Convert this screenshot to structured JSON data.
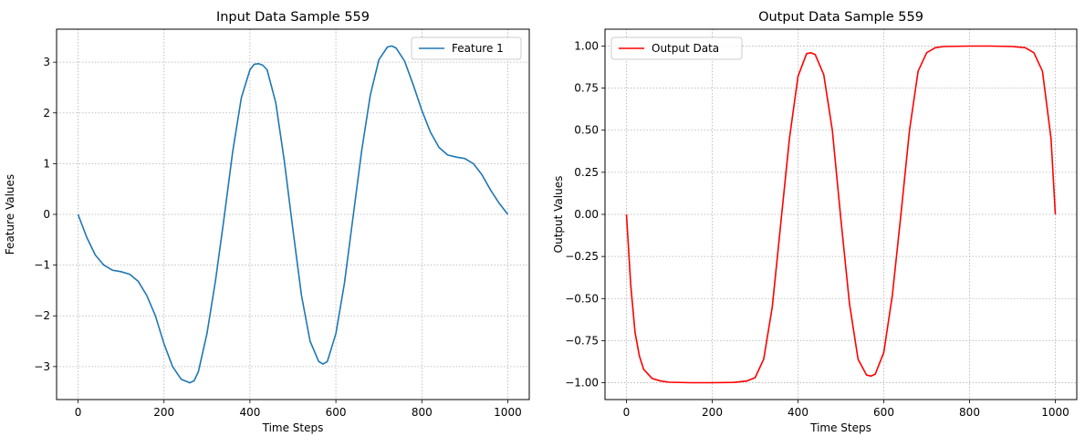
{
  "chart_data": [
    {
      "type": "line",
      "title": "Input Data Sample 559",
      "xlabel": "Time Steps",
      "ylabel": "Feature Values",
      "xlim": [
        -50,
        1050
      ],
      "ylim": [
        -3.65,
        3.65
      ],
      "xticks": [
        0,
        200,
        400,
        600,
        800,
        1000
      ],
      "yticks": [
        -3,
        -2,
        -1,
        0,
        1,
        2,
        3
      ],
      "grid": true,
      "legend_position": "top-right",
      "series": [
        {
          "name": "Feature 1",
          "color": "#1f77b4",
          "x": [
            0,
            20,
            40,
            60,
            80,
            100,
            120,
            140,
            160,
            180,
            200,
            220,
            240,
            260,
            270,
            280,
            300,
            320,
            340,
            360,
            380,
            400,
            410,
            420,
            430,
            440,
            460,
            480,
            500,
            520,
            540,
            560,
            570,
            580,
            600,
            620,
            640,
            660,
            680,
            700,
            720,
            730,
            740,
            760,
            780,
            800,
            820,
            840,
            860,
            880,
            900,
            920,
            940,
            960,
            980,
            1000
          ],
          "y": [
            0,
            -0.45,
            -0.8,
            -1.0,
            -1.1,
            -1.13,
            -1.18,
            -1.32,
            -1.6,
            -2.0,
            -2.55,
            -3.0,
            -3.25,
            -3.32,
            -3.28,
            -3.1,
            -2.35,
            -1.3,
            -0.05,
            1.25,
            2.3,
            2.85,
            2.96,
            2.97,
            2.94,
            2.85,
            2.2,
            1.05,
            -0.3,
            -1.6,
            -2.5,
            -2.9,
            -2.95,
            -2.9,
            -2.35,
            -1.35,
            -0.05,
            1.25,
            2.35,
            3.05,
            3.3,
            3.32,
            3.28,
            3.02,
            2.55,
            2.05,
            1.62,
            1.32,
            1.17,
            1.13,
            1.1,
            1.0,
            0.78,
            0.48,
            0.22,
            0
          ]
        }
      ]
    },
    {
      "type": "line",
      "title": "Output Data Sample 559",
      "xlabel": "Time Steps",
      "ylabel": "Output Values",
      "xlim": [
        -50,
        1050
      ],
      "ylim": [
        -1.1,
        1.1
      ],
      "xticks": [
        0,
        200,
        400,
        600,
        800,
        1000
      ],
      "yticks": [
        -1.0,
        -0.75,
        -0.5,
        -0.25,
        0.0,
        0.25,
        0.5,
        0.75,
        1.0
      ],
      "ytick_labels": [
        "−1.00",
        "−0.75",
        "−0.50",
        "−0.25",
        "0.00",
        "0.25",
        "0.50",
        "0.75",
        "1.00"
      ],
      "grid": true,
      "legend_position": "top-left",
      "series": [
        {
          "name": "Output Data",
          "color": "#ff0000",
          "x": [
            0,
            10,
            20,
            30,
            40,
            60,
            80,
            100,
            150,
            200,
            250,
            280,
            300,
            320,
            340,
            360,
            380,
            400,
            420,
            430,
            440,
            460,
            480,
            500,
            520,
            540,
            560,
            570,
            580,
            600,
            620,
            640,
            660,
            680,
            700,
            720,
            740,
            800,
            850,
            900,
            930,
            950,
            970,
            990,
            1000
          ],
          "y": [
            0,
            -0.42,
            -0.7,
            -0.84,
            -0.92,
            -0.975,
            -0.99,
            -0.997,
            -1.0,
            -1.0,
            -0.998,
            -0.99,
            -0.97,
            -0.86,
            -0.55,
            -0.05,
            0.45,
            0.82,
            0.955,
            0.96,
            0.95,
            0.83,
            0.5,
            -0.03,
            -0.53,
            -0.86,
            -0.955,
            -0.96,
            -0.95,
            -0.82,
            -0.48,
            0.0,
            0.5,
            0.85,
            0.96,
            0.99,
            0.997,
            1.0,
            1.0,
            0.997,
            0.99,
            0.96,
            0.85,
            0.45,
            0
          ]
        }
      ]
    }
  ]
}
